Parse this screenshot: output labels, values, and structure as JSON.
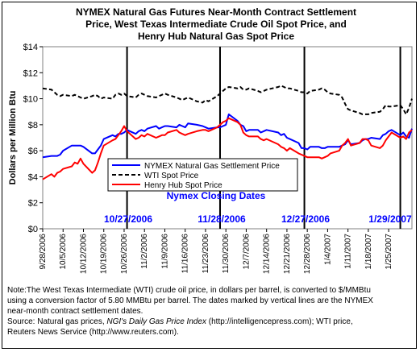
{
  "chart_data": {
    "type": "line",
    "title_lines": [
      "NYMEX Natural Gas Futures Near-Month Contract Settlement",
      "Price, West Texas Intermediate Crude Oil Spot Price, and",
      "Henry Hub Natural Gas Spot Price"
    ],
    "ylabel": "Dollars per Million Btu",
    "ylim": [
      0,
      14
    ],
    "yticks": [
      "$0",
      "$2",
      "$4",
      "$6",
      "$8",
      "$10",
      "$12",
      "$14"
    ],
    "xticks": [
      "9/28/2006",
      "10/5/2006",
      "10/12/2006",
      "10/19/2006",
      "10/26/2006",
      "11/2/2006",
      "11/9/2006",
      "11/16/2006",
      "11/23/2006",
      "11/30/2006",
      "12/7/2006",
      "12/14/2006",
      "12/21/2006",
      "12/28/2006",
      "1/4/2007",
      "1/11/2007",
      "1/18/2007",
      "1/25/2007"
    ],
    "legend": [
      "NYMEX Natural Gas Settlement Price",
      "WTI Spot Price",
      "Henry Hub Spot Price"
    ],
    "closing_dates_label": "Nymex Closing Dates",
    "closing_dates": [
      {
        "label": "10/27/2006",
        "day": 29
      },
      {
        "label": "11/28/2006",
        "day": 61
      },
      {
        "label": "12/27/2006",
        "day": 90
      },
      {
        "label": "1/29/2007",
        "day": 123
      }
    ],
    "series": [
      {
        "name": "NYMEX Natural Gas Settlement Price",
        "color": "#0000ff",
        "style": "solid",
        "x": [
          0,
          3,
          4,
          5,
          6,
          7,
          10,
          11,
          12,
          13,
          14,
          17,
          18,
          19,
          20,
          21,
          24,
          25,
          26,
          27,
          28,
          29,
          32,
          33,
          34,
          35,
          36,
          39,
          40,
          41,
          42,
          43,
          46,
          47,
          48,
          49,
          50,
          53,
          55,
          56,
          57,
          60,
          61,
          62,
          63,
          64,
          67,
          68,
          69,
          70,
          71,
          74,
          75,
          76,
          77,
          81,
          82,
          83,
          84,
          85,
          88,
          89,
          90,
          91,
          92,
          95,
          96,
          97,
          98,
          99,
          102,
          103,
          104,
          105,
          106,
          109,
          110,
          111,
          112,
          113,
          116,
          117,
          118,
          119,
          120,
          123,
          124,
          125,
          126,
          127
        ],
        "y": [
          5.5,
          5.6,
          5.6,
          5.6,
          5.7,
          6.0,
          6.4,
          6.4,
          6.4,
          6.4,
          6.3,
          5.8,
          5.8,
          6.1,
          6.4,
          6.9,
          7.2,
          7.1,
          7.3,
          7.3,
          7.4,
          7.6,
          7.3,
          7.5,
          7.6,
          7.5,
          7.7,
          7.9,
          7.7,
          7.8,
          7.9,
          7.9,
          7.8,
          8.0,
          7.9,
          7.8,
          8.1,
          8.0,
          7.9,
          7.8,
          7.7,
          7.8,
          7.8,
          7.9,
          8.0,
          8.8,
          8.3,
          8.0,
          7.9,
          7.5,
          7.6,
          7.6,
          7.4,
          7.5,
          7.6,
          7.4,
          7.2,
          7.3,
          7.0,
          6.9,
          6.6,
          6.2,
          6.2,
          6.1,
          6.3,
          6.3,
          6.2,
          6.2,
          6.3,
          6.3,
          6.3,
          6.4,
          6.5,
          6.8,
          6.5,
          6.6,
          6.8,
          6.9,
          6.9,
          7.0,
          6.9,
          7.2,
          7.3,
          7.5,
          7.6,
          7.2,
          7.4,
          7.1,
          7.0,
          7.7
        ]
      },
      {
        "name": "WTI Spot Price",
        "color": "#000000",
        "style": "dashed",
        "x": [
          0,
          3,
          4,
          5,
          6,
          7,
          10,
          11,
          12,
          13,
          14,
          17,
          18,
          19,
          20,
          21,
          24,
          25,
          26,
          27,
          28,
          29,
          32,
          33,
          34,
          35,
          36,
          39,
          40,
          41,
          42,
          43,
          46,
          47,
          48,
          49,
          50,
          53,
          55,
          56,
          57,
          60,
          61,
          62,
          63,
          64,
          67,
          68,
          69,
          70,
          71,
          74,
          75,
          76,
          77,
          81,
          82,
          83,
          84,
          85,
          88,
          89,
          90,
          91,
          92,
          95,
          96,
          97,
          98,
          99,
          102,
          103,
          104,
          105,
          106,
          109,
          110,
          111,
          112,
          113,
          116,
          117,
          118,
          119,
          120,
          123,
          124,
          125,
          126,
          127
        ],
        "y": [
          10.8,
          10.7,
          10.5,
          10.3,
          10.2,
          10.3,
          10.2,
          10.3,
          10.2,
          10.1,
          10.0,
          10.2,
          10.3,
          10.2,
          10.0,
          10.1,
          10.0,
          10.3,
          10.4,
          10.3,
          10.4,
          10.2,
          10.1,
          10.3,
          10.4,
          10.3,
          10.2,
          10.1,
          10.2,
          10.3,
          10.4,
          10.3,
          10.1,
          10.0,
          9.9,
          10.0,
          10.1,
          9.8,
          9.7,
          9.9,
          9.8,
          10.2,
          10.4,
          10.6,
          10.8,
          10.9,
          10.8,
          10.9,
          10.7,
          10.7,
          10.8,
          10.6,
          10.5,
          10.6,
          10.7,
          10.9,
          11.0,
          10.9,
          10.8,
          10.8,
          10.6,
          10.5,
          10.5,
          10.4,
          10.6,
          10.7,
          10.8,
          10.7,
          10.5,
          10.4,
          10.3,
          10.1,
          9.6,
          9.2,
          9.1,
          8.9,
          8.8,
          8.8,
          8.8,
          8.9,
          9.0,
          9.2,
          9.5,
          9.4,
          9.4,
          9.5,
          9.2,
          8.8,
          9.3,
          10.0
        ]
      },
      {
        "name": "Henry Hub Spot Price",
        "color": "#ff0000",
        "style": "solid",
        "x": [
          0,
          3,
          4,
          5,
          6,
          7,
          10,
          11,
          12,
          13,
          14,
          17,
          18,
          19,
          20,
          21,
          24,
          25,
          26,
          27,
          28,
          29,
          32,
          33,
          34,
          35,
          36,
          39,
          40,
          41,
          42,
          43,
          46,
          47,
          48,
          49,
          50,
          53,
          55,
          56,
          57,
          60,
          61,
          62,
          63,
          64,
          67,
          68,
          69,
          70,
          71,
          74,
          75,
          76,
          77,
          81,
          82,
          83,
          84,
          85,
          88,
          89,
          90,
          91,
          92,
          95,
          96,
          97,
          98,
          99,
          102,
          103,
          104,
          105,
          106,
          109,
          110,
          111,
          112,
          113,
          116,
          117,
          118,
          119,
          120,
          123,
          124,
          125,
          126,
          127
        ],
        "y": [
          3.8,
          4.2,
          4.0,
          4.3,
          4.4,
          4.6,
          4.8,
          5.1,
          5.0,
          5.4,
          5.0,
          4.3,
          4.5,
          5.1,
          5.8,
          6.4,
          6.8,
          6.9,
          7.2,
          7.5,
          7.9,
          7.5,
          6.9,
          7.0,
          7.2,
          7.1,
          7.3,
          7.0,
          7.1,
          7.2,
          7.2,
          7.4,
          7.6,
          7.4,
          7.3,
          7.2,
          7.3,
          7.5,
          7.6,
          7.6,
          7.5,
          7.8,
          8.0,
          8.2,
          8.3,
          8.5,
          8.2,
          8.0,
          7.4,
          7.2,
          7.1,
          7.1,
          6.9,
          6.8,
          6.9,
          6.5,
          6.3,
          6.2,
          6.0,
          6.2,
          5.8,
          5.7,
          5.6,
          5.5,
          5.5,
          5.5,
          5.4,
          5.5,
          5.6,
          5.8,
          6.0,
          6.4,
          6.6,
          6.9,
          6.4,
          6.6,
          6.9,
          6.9,
          6.8,
          6.4,
          6.2,
          6.4,
          6.8,
          7.1,
          7.4,
          7.0,
          7.1,
          6.9,
          7.4,
          7.6
        ]
      }
    ]
  },
  "note": {
    "line1": "Note:The West Texas Intermediate (WTI) crude oil price, in dollars per barrel,  is converted to $/MMBtu",
    "line2": "using a conversion factor of 5.80 MMBtu per barrel.  The dates marked by vertical lines are the NYMEX",
    "line3": "near-month contract settlement dates.",
    "source_prefix": "Source: Natural gas prices, ",
    "source_italic": "NGI's Daily Gas Price Index",
    "source_suffix": " (http://intelligencepress.com); WTI price,",
    "line5": "Reuters News Service (http://www.reuters.com)."
  }
}
